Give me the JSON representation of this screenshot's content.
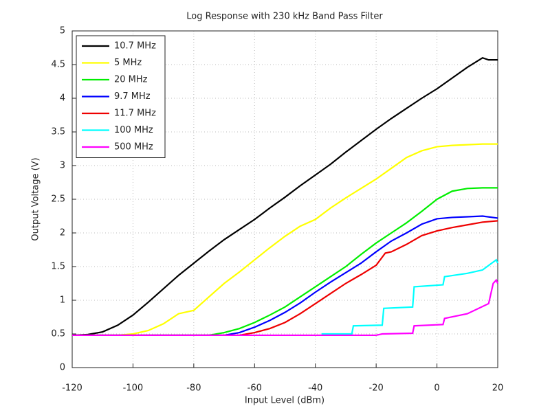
{
  "chart_data": {
    "type": "line",
    "title": "Log Response with 230 kHz Band Pass Filter",
    "x_label": "Input Level (dBm)",
    "y_label": "Output Voltage (V)",
    "xlim": [
      -120,
      20
    ],
    "xticks": [
      -120,
      -100,
      -80,
      -60,
      -40,
      -20,
      0,
      20
    ],
    "ylim": [
      0,
      5
    ],
    "yticks": [
      0,
      0.5,
      1,
      1.5,
      2,
      2.5,
      3,
      3.5,
      4,
      4.5,
      5
    ],
    "grid": true,
    "legend": "upper-left",
    "series": [
      {
        "name": "10.7 MHz",
        "color": "#000000",
        "x": [
          -120,
          -115,
          -110,
          -105,
          -100,
          -95,
          -90,
          -85,
          -80,
          -75,
          -70,
          -65,
          -60,
          -55,
          -50,
          -45,
          -40,
          -35,
          -30,
          -25,
          -20,
          -15,
          -10,
          -5,
          0,
          5,
          10,
          15,
          17,
          20
        ],
        "values": [
          0.48,
          0.49,
          0.53,
          0.63,
          0.78,
          0.97,
          1.17,
          1.37,
          1.55,
          1.73,
          1.9,
          2.05,
          2.2,
          2.37,
          2.53,
          2.7,
          2.86,
          3.02,
          3.2,
          3.37,
          3.54,
          3.7,
          3.85,
          4.0,
          4.14,
          4.3,
          4.46,
          4.6,
          4.57,
          4.57
        ]
      },
      {
        "name": "5 MHz",
        "color": "#ffff00",
        "x": [
          -120,
          -110,
          -105,
          -100,
          -95,
          -90,
          -85,
          -80,
          -75,
          -70,
          -65,
          -60,
          -55,
          -50,
          -45,
          -40,
          -35,
          -30,
          -25,
          -20,
          -15,
          -10,
          -5,
          0,
          5,
          10,
          15,
          20
        ],
        "values": [
          0.48,
          0.48,
          0.48,
          0.5,
          0.55,
          0.65,
          0.8,
          0.85,
          1.05,
          1.25,
          1.42,
          1.6,
          1.78,
          1.95,
          2.1,
          2.2,
          2.37,
          2.52,
          2.66,
          2.8,
          2.96,
          3.12,
          3.22,
          3.28,
          3.3,
          3.31,
          3.32,
          3.32
        ]
      },
      {
        "name": "20 MHz",
        "color": "#00ee00",
        "x": [
          -120,
          -75,
          -70,
          -65,
          -60,
          -55,
          -50,
          -45,
          -40,
          -35,
          -30,
          -25,
          -20,
          -15,
          -10,
          -5,
          0,
          5,
          10,
          15,
          20
        ],
        "values": [
          0.48,
          0.48,
          0.52,
          0.58,
          0.67,
          0.78,
          0.9,
          1.05,
          1.2,
          1.35,
          1.5,
          1.68,
          1.85,
          2.0,
          2.15,
          2.32,
          2.5,
          2.62,
          2.66,
          2.67,
          2.67
        ]
      },
      {
        "name": "9.7 MHz",
        "color": "#0000ff",
        "x": [
          -120,
          -70,
          -65,
          -60,
          -55,
          -50,
          -45,
          -40,
          -35,
          -30,
          -25,
          -20,
          -15,
          -10,
          -5,
          0,
          5,
          10,
          15,
          20
        ],
        "values": [
          0.48,
          0.48,
          0.52,
          0.6,
          0.7,
          0.82,
          0.96,
          1.12,
          1.27,
          1.41,
          1.55,
          1.72,
          1.88,
          2.0,
          2.13,
          2.21,
          2.23,
          2.24,
          2.25,
          2.22
        ]
      },
      {
        "name": "11.7 MHz",
        "color": "#ee0000",
        "x": [
          -120,
          -65,
          -60,
          -55,
          -50,
          -45,
          -40,
          -35,
          -30,
          -25,
          -20,
          -17,
          -15,
          -10,
          -5,
          0,
          5,
          10,
          15,
          20
        ],
        "values": [
          0.48,
          0.48,
          0.52,
          0.58,
          0.67,
          0.8,
          0.95,
          1.1,
          1.25,
          1.38,
          1.52,
          1.7,
          1.72,
          1.83,
          1.96,
          2.03,
          2.08,
          2.12,
          2.16,
          2.18
        ]
      },
      {
        "name": "100 MHz",
        "color": "#00ffff",
        "x": [
          -38,
          -28,
          -27.5,
          -18,
          -17.5,
          -8,
          -7.5,
          2,
          2.5,
          10,
          15,
          19.5,
          20
        ],
        "values": [
          0.5,
          0.5,
          0.62,
          0.63,
          0.88,
          0.9,
          1.2,
          1.23,
          1.35,
          1.4,
          1.45,
          1.6,
          1.55
        ]
      },
      {
        "name": "500 MHz",
        "color": "#ff00ff",
        "x": [
          -120,
          -20,
          -18,
          -8,
          -7.5,
          2,
          2.5,
          10,
          17,
          18.5,
          19.5,
          20
        ],
        "values": [
          0.48,
          0.48,
          0.5,
          0.51,
          0.62,
          0.64,
          0.73,
          0.8,
          0.95,
          1.25,
          1.3,
          1.25
        ]
      }
    ]
  }
}
